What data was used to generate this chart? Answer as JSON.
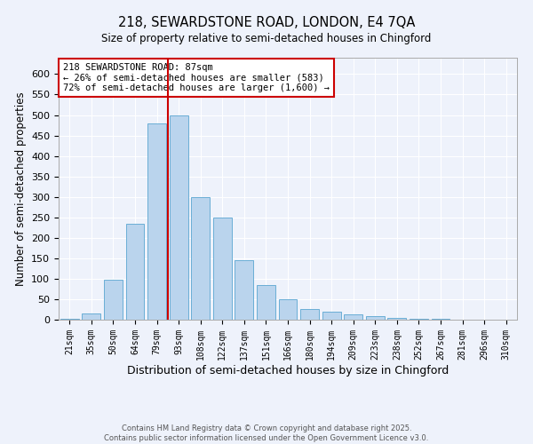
{
  "title_line1": "218, SEWARDSTONE ROAD, LONDON, E4 7QA",
  "title_line2": "Size of property relative to semi-detached houses in Chingford",
  "xlabel": "Distribution of semi-detached houses by size in Chingford",
  "ylabel": "Number of semi-detached properties",
  "categories": [
    "21sqm",
    "35sqm",
    "50sqm",
    "64sqm",
    "79sqm",
    "93sqm",
    "108sqm",
    "122sqm",
    "137sqm",
    "151sqm",
    "166sqm",
    "180sqm",
    "194sqm",
    "209sqm",
    "223sqm",
    "238sqm",
    "252sqm",
    "267sqm",
    "281sqm",
    "296sqm",
    "310sqm"
  ],
  "values": [
    3,
    15,
    97,
    235,
    480,
    500,
    300,
    250,
    145,
    85,
    50,
    27,
    20,
    12,
    8,
    5,
    3,
    2,
    1,
    1,
    1
  ],
  "bar_color": "#bad4ed",
  "bar_edge_color": "#6aaed6",
  "background_color": "#eef2fb",
  "grid_color": "#ffffff",
  "vline_color": "#cc0000",
  "vline_x_index": 4.5,
  "annotation_text": "218 SEWARDSTONE ROAD: 87sqm\n← 26% of semi-detached houses are smaller (583)\n72% of semi-detached houses are larger (1,600) →",
  "annotation_box_color": "#ffffff",
  "annotation_box_edge": "#cc0000",
  "footer_line1": "Contains HM Land Registry data © Crown copyright and database right 2025.",
  "footer_line2": "Contains public sector information licensed under the Open Government Licence v3.0.",
  "ylim": [
    0,
    640
  ],
  "yticks": [
    0,
    50,
    100,
    150,
    200,
    250,
    300,
    350,
    400,
    450,
    500,
    550,
    600
  ]
}
